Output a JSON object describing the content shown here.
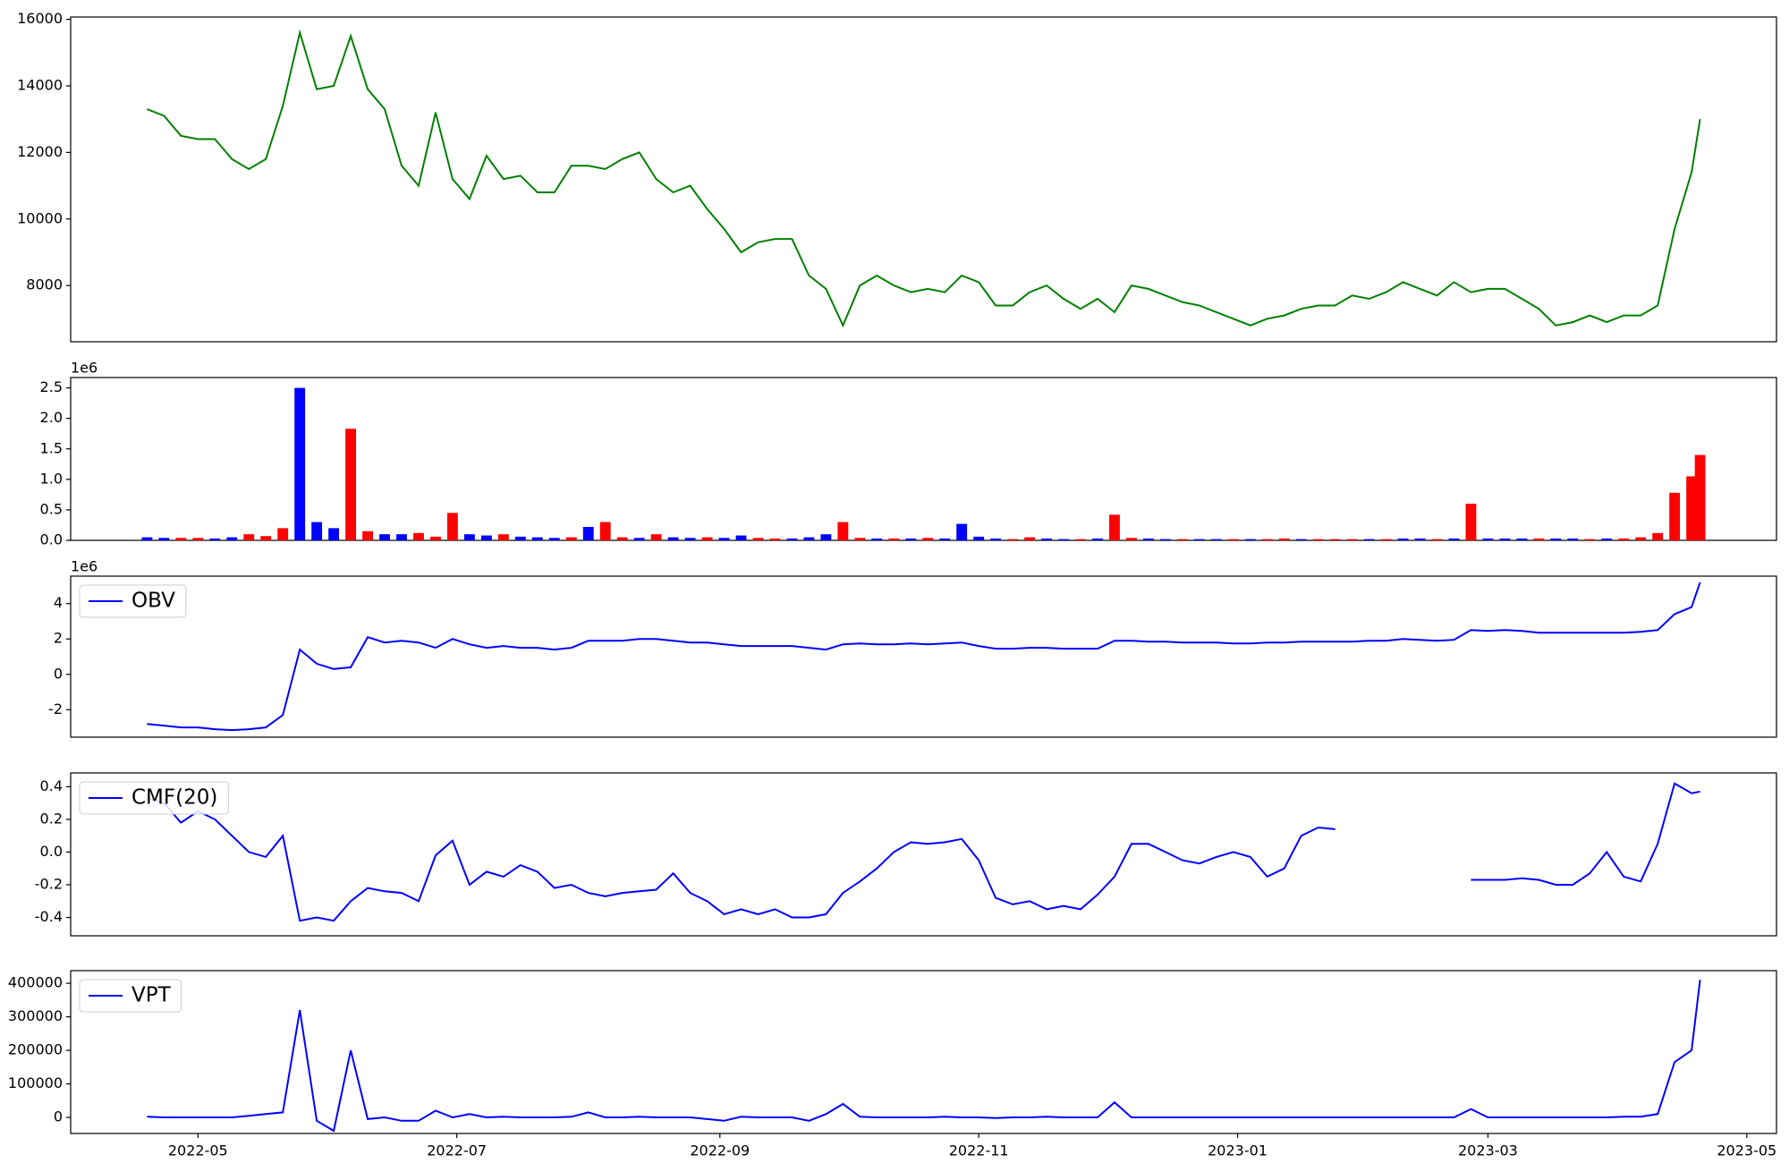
{
  "chart_data": [
    {
      "type": "line",
      "color": "green",
      "x": [
        19101,
        19105,
        19109,
        19113,
        19117,
        19121,
        19125,
        19129,
        19133,
        19137,
        19141,
        19145,
        19149,
        19153,
        19157,
        19161,
        19165,
        19169,
        19173,
        19177,
        19181,
        19185,
        19189,
        19193,
        19197,
        19201,
        19205,
        19209,
        19213,
        19217,
        19221,
        19225,
        19229,
        19233,
        19237,
        19241,
        19245,
        19249,
        19253,
        19257,
        19261,
        19265,
        19269,
        19273,
        19277,
        19281,
        19285,
        19289,
        19293,
        19297,
        19301,
        19305,
        19309,
        19313,
        19317,
        19321,
        19325,
        19329,
        19333,
        19337,
        19341,
        19345,
        19349,
        19353,
        19357,
        19361,
        19365,
        19369,
        19373,
        19377,
        19381,
        19385,
        19389,
        19393,
        19397,
        19401,
        19405,
        19409,
        19413,
        19417,
        19421,
        19425,
        19429,
        19433,
        19437,
        19441,
        19445,
        19449,
        19453,
        19457,
        19461,
        19465,
        19467
      ],
      "values": [
        13300,
        13100,
        12500,
        12400,
        12400,
        11800,
        11500,
        11800,
        13400,
        15600,
        13900,
        14000,
        15500,
        13900,
        13300,
        11600,
        11000,
        13200,
        11200,
        10600,
        11900,
        11200,
        11300,
        10800,
        10800,
        11600,
        11600,
        11500,
        11800,
        12000,
        11200,
        10800,
        11000,
        10300,
        9700,
        9000,
        9300,
        9400,
        9400,
        8300,
        7900,
        6800,
        8000,
        8300,
        8000,
        7800,
        7900,
        7800,
        8300,
        8100,
        7400,
        7400,
        7800,
        8000,
        7600,
        7300,
        7600,
        7200,
        8000,
        7900,
        7700,
        7500,
        7400,
        7200,
        7000,
        6800,
        7000,
        7100,
        7300,
        7400,
        7400,
        7700,
        7600,
        7800,
        8100,
        7900,
        7700,
        8100,
        7800,
        7900,
        7900,
        7600,
        7300,
        6800,
        6900,
        7100,
        6900,
        7100,
        7100,
        7400,
        9700,
        11400,
        13000
      ],
      "xlim": [
        19083,
        19485
      ],
      "ylim": [
        6310,
        16070
      ],
      "yticks": [
        8000,
        10000,
        12000,
        14000,
        16000
      ]
    },
    {
      "type": "bar",
      "offset_text": "1e6",
      "x": [
        19101,
        19105,
        19109,
        19113,
        19117,
        19121,
        19125,
        19129,
        19133,
        19137,
        19141,
        19145,
        19149,
        19153,
        19157,
        19161,
        19165,
        19169,
        19173,
        19177,
        19181,
        19185,
        19189,
        19193,
        19197,
        19201,
        19205,
        19209,
        19213,
        19217,
        19221,
        19225,
        19229,
        19233,
        19237,
        19241,
        19245,
        19249,
        19253,
        19257,
        19261,
        19265,
        19269,
        19273,
        19277,
        19281,
        19285,
        19289,
        19293,
        19297,
        19301,
        19305,
        19309,
        19313,
        19317,
        19321,
        19325,
        19329,
        19333,
        19337,
        19341,
        19345,
        19349,
        19353,
        19357,
        19361,
        19365,
        19369,
        19373,
        19377,
        19381,
        19385,
        19389,
        19393,
        19397,
        19401,
        19405,
        19409,
        19413,
        19417,
        19421,
        19425,
        19429,
        19433,
        19437,
        19441,
        19445,
        19449,
        19453,
        19457,
        19461,
        19465,
        19467
      ],
      "values": [
        0.05,
        0.04,
        0.04,
        0.04,
        0.03,
        0.05,
        0.1,
        0.07,
        0.2,
        2.5,
        0.3,
        0.2,
        1.83,
        0.15,
        0.1,
        0.1,
        0.12,
        0.06,
        0.45,
        0.1,
        0.08,
        0.1,
        0.06,
        0.05,
        0.04,
        0.05,
        0.22,
        0.3,
        0.05,
        0.04,
        0.1,
        0.05,
        0.04,
        0.05,
        0.04,
        0.08,
        0.04,
        0.03,
        0.03,
        0.05,
        0.1,
        0.3,
        0.04,
        0.03,
        0.03,
        0.03,
        0.04,
        0.03,
        0.27,
        0.06,
        0.03,
        0.02,
        0.05,
        0.03,
        0.02,
        0.02,
        0.03,
        0.42,
        0.04,
        0.03,
        0.02,
        0.02,
        0.02,
        0.02,
        0.02,
        0.02,
        0.02,
        0.03,
        0.02,
        0.02,
        0.02,
        0.02,
        0.02,
        0.02,
        0.03,
        0.03,
        0.02,
        0.03,
        0.6,
        0.03,
        0.03,
        0.03,
        0.03,
        0.03,
        0.03,
        0.02,
        0.03,
        0.03,
        0.05,
        0.12,
        0.78,
        1.05,
        1.4
      ],
      "colors": [
        "blue",
        "blue",
        "red",
        "red",
        "blue",
        "blue",
        "red",
        "red",
        "red",
        "blue",
        "blue",
        "blue",
        "red",
        "red",
        "blue",
        "blue",
        "red",
        "red",
        "red",
        "blue",
        "blue",
        "red",
        "blue",
        "blue",
        "blue",
        "red",
        "blue",
        "red",
        "red",
        "blue",
        "red",
        "blue",
        "blue",
        "red",
        "blue",
        "blue",
        "red",
        "red",
        "blue",
        "blue",
        "blue",
        "red",
        "red",
        "blue",
        "red",
        "blue",
        "red",
        "blue",
        "blue",
        "blue",
        "blue",
        "red",
        "red",
        "blue",
        "blue",
        "red",
        "blue",
        "red",
        "red",
        "blue",
        "blue",
        "red",
        "blue",
        "blue",
        "red",
        "blue",
        "red",
        "red",
        "blue",
        "red",
        "red",
        "red",
        "blue",
        "red",
        "blue",
        "blue",
        "red",
        "blue",
        "red",
        "blue",
        "blue",
        "blue",
        "red",
        "blue",
        "blue",
        "red",
        "blue",
        "red",
        "red",
        "red",
        "red",
        "red",
        "red"
      ],
      "xlim": [
        19083,
        19485
      ],
      "ylim": [
        0,
        2.67
      ],
      "yticks": [
        {
          "value": 0,
          "label": "0.0"
        },
        0.5,
        {
          "value": 1,
          "label": "1.0"
        },
        1.5,
        {
          "value": 2,
          "label": "2.0"
        },
        2.5
      ]
    },
    {
      "type": "line",
      "offset_text": "1e6",
      "legend": "upper left",
      "x": [
        19101,
        19105,
        19109,
        19113,
        19117,
        19121,
        19125,
        19129,
        19133,
        19137,
        19141,
        19145,
        19149,
        19153,
        19157,
        19161,
        19165,
        19169,
        19173,
        19177,
        19181,
        19185,
        19189,
        19193,
        19197,
        19201,
        19205,
        19209,
        19213,
        19217,
        19221,
        19225,
        19229,
        19233,
        19237,
        19241,
        19245,
        19249,
        19253,
        19257,
        19261,
        19265,
        19269,
        19273,
        19277,
        19281,
        19285,
        19289,
        19293,
        19297,
        19301,
        19305,
        19309,
        19313,
        19317,
        19321,
        19325,
        19329,
        19333,
        19337,
        19341,
        19345,
        19349,
        19353,
        19357,
        19361,
        19365,
        19369,
        19373,
        19377,
        19381,
        19385,
        19389,
        19393,
        19397,
        19401,
        19405,
        19409,
        19413,
        19417,
        19421,
        19425,
        19429,
        19433,
        19437,
        19441,
        19445,
        19449,
        19453,
        19457,
        19461,
        19465,
        19467
      ],
      "series": [
        {
          "name": "OBV",
          "color": "blue",
          "values": [
            -2.8,
            -2.9,
            -3.0,
            -3.0,
            -3.1,
            -3.15,
            -3.1,
            -3.0,
            -2.3,
            1.4,
            0.6,
            0.3,
            0.4,
            2.1,
            1.8,
            1.9,
            1.8,
            1.5,
            2.0,
            1.7,
            1.5,
            1.6,
            1.5,
            1.5,
            1.4,
            1.5,
            1.9,
            1.9,
            1.9,
            2.0,
            2.0,
            1.9,
            1.8,
            1.8,
            1.7,
            1.6,
            1.6,
            1.6,
            1.6,
            1.5,
            1.4,
            1.7,
            1.75,
            1.7,
            1.7,
            1.75,
            1.7,
            1.75,
            1.8,
            1.6,
            1.45,
            1.45,
            1.5,
            1.5,
            1.45,
            1.45,
            1.45,
            1.9,
            1.9,
            1.85,
            1.85,
            1.8,
            1.8,
            1.8,
            1.75,
            1.75,
            1.8,
            1.8,
            1.85,
            1.85,
            1.85,
            1.85,
            1.9,
            1.9,
            2.0,
            1.95,
            1.9,
            1.95,
            2.5,
            2.45,
            2.5,
            2.45,
            2.35,
            2.35,
            2.35,
            2.35,
            2.35,
            2.35,
            2.4,
            2.5,
            3.4,
            3.8,
            5.2
          ]
        }
      ],
      "xlim": [
        19083,
        19485
      ],
      "ylim": [
        -3.55,
        5.55
      ],
      "yticks": [
        -2,
        0,
        2,
        4
      ]
    },
    {
      "type": "line",
      "legend": "upper left",
      "x": [
        19101,
        19105,
        19109,
        19113,
        19117,
        19121,
        19125,
        19129,
        19133,
        19137,
        19141,
        19145,
        19149,
        19153,
        19157,
        19161,
        19165,
        19169,
        19173,
        19177,
        19181,
        19185,
        19189,
        19193,
        19197,
        19201,
        19205,
        19209,
        19213,
        19217,
        19221,
        19225,
        19229,
        19233,
        19237,
        19241,
        19245,
        19249,
        19253,
        19257,
        19261,
        19265,
        19269,
        19273,
        19277,
        19281,
        19285,
        19289,
        19293,
        19297,
        19301,
        19305,
        19309,
        19313,
        19317,
        19321,
        19325,
        19329,
        19333,
        19337,
        19341,
        19345,
        19349,
        19353,
        19357,
        19361,
        19365,
        19369,
        19373,
        19377,
        19381,
        19385,
        19389,
        19393,
        19397,
        19401,
        19405,
        19409,
        19413,
        19417,
        19421,
        19425,
        19429,
        19433,
        19437,
        19441,
        19445,
        19449,
        19453,
        19457,
        19461,
        19465,
        19467
      ],
      "series": [
        {
          "name": "CMF(20)",
          "color": "blue",
          "values": [
            0.33,
            0.3,
            0.18,
            0.25,
            0.2,
            0.1,
            0.0,
            -0.03,
            0.1,
            -0.42,
            -0.4,
            -0.42,
            -0.3,
            -0.22,
            -0.24,
            -0.25,
            -0.3,
            -0.02,
            0.07,
            -0.2,
            -0.12,
            -0.15,
            -0.08,
            -0.12,
            -0.22,
            -0.2,
            -0.25,
            -0.27,
            -0.25,
            -0.24,
            -0.23,
            -0.13,
            -0.25,
            -0.3,
            -0.38,
            -0.35,
            -0.38,
            -0.35,
            -0.4,
            -0.4,
            -0.38,
            -0.25,
            -0.18,
            -0.1,
            0.0,
            0.06,
            0.05,
            0.06,
            0.08,
            -0.05,
            -0.28,
            -0.32,
            -0.3,
            -0.35,
            -0.33,
            -0.35,
            -0.26,
            -0.15,
            0.05,
            0.05,
            0.0,
            -0.05,
            -0.07,
            -0.03,
            0.0,
            -0.03,
            -0.15,
            -0.1,
            0.1,
            0.15,
            0.14,
            null,
            null,
            null,
            null,
            null,
            null,
            null,
            -0.17,
            -0.17,
            -0.17,
            -0.16,
            -0.17,
            -0.2,
            -0.2,
            -0.13,
            0.0,
            -0.15,
            -0.18,
            0.05,
            0.42,
            0.36,
            0.37
          ]
        }
      ],
      "xlim": [
        19083,
        19485
      ],
      "ylim": [
        -0.512,
        0.484
      ],
      "yticks": [
        -0.4,
        -0.2,
        {
          "value": 0,
          "label": "0.0"
        },
        0.2,
        0.4
      ]
    },
    {
      "type": "line",
      "legend": "upper left",
      "x": [
        19101,
        19105,
        19109,
        19113,
        19117,
        19121,
        19125,
        19129,
        19133,
        19137,
        19141,
        19145,
        19149,
        19153,
        19157,
        19161,
        19165,
        19169,
        19173,
        19177,
        19181,
        19185,
        19189,
        19193,
        19197,
        19201,
        19205,
        19209,
        19213,
        19217,
        19221,
        19225,
        19229,
        19233,
        19237,
        19241,
        19245,
        19249,
        19253,
        19257,
        19261,
        19265,
        19269,
        19273,
        19277,
        19281,
        19285,
        19289,
        19293,
        19297,
        19301,
        19305,
        19309,
        19313,
        19317,
        19321,
        19325,
        19329,
        19333,
        19337,
        19341,
        19345,
        19349,
        19353,
        19357,
        19361,
        19365,
        19369,
        19373,
        19377,
        19381,
        19385,
        19389,
        19393,
        19397,
        19401,
        19405,
        19409,
        19413,
        19417,
        19421,
        19425,
        19429,
        19433,
        19437,
        19441,
        19445,
        19449,
        19453,
        19457,
        19461,
        19465,
        19467
      ],
      "series": [
        {
          "name": "VPT",
          "color": "blue",
          "values": [
            2000,
            0,
            0,
            0,
            0,
            0,
            5000,
            10000,
            15000,
            320000,
            -10000,
            -40000,
            200000,
            -5000,
            0,
            -10000,
            -10000,
            20000,
            0,
            10000,
            0,
            2000,
            0,
            0,
            0,
            2000,
            15000,
            0,
            0,
            2000,
            0,
            0,
            0,
            -5000,
            -10000,
            2000,
            0,
            0,
            0,
            -10000,
            10000,
            40000,
            2000,
            0,
            0,
            0,
            0,
            2000,
            0,
            0,
            -2000,
            0,
            0,
            2000,
            0,
            0,
            0,
            45000,
            0,
            0,
            0,
            0,
            0,
            0,
            0,
            0,
            0,
            0,
            0,
            0,
            0,
            0,
            0,
            0,
            0,
            0,
            0,
            0,
            25000,
            0,
            0,
            0,
            0,
            0,
            0,
            0,
            0,
            2000,
            2000,
            10000,
            165000,
            200000,
            410000
          ]
        }
      ],
      "xlim": [
        19083,
        19485
      ],
      "ylim": [
        -47900,
        437600
      ],
      "yticks": [
        0,
        100000,
        200000,
        300000,
        400000
      ],
      "xticks": [
        {
          "value": 19113,
          "label": "2022-05"
        },
        {
          "value": 19174,
          "label": "2022-07"
        },
        {
          "value": 19236,
          "label": "2022-09"
        },
        {
          "value": 19297,
          "label": "2022-11"
        },
        {
          "value": 19358,
          "label": "2023-01"
        },
        {
          "value": 19417,
          "label": "2023-03"
        },
        {
          "value": 19478,
          "label": "2023-05"
        }
      ]
    }
  ]
}
